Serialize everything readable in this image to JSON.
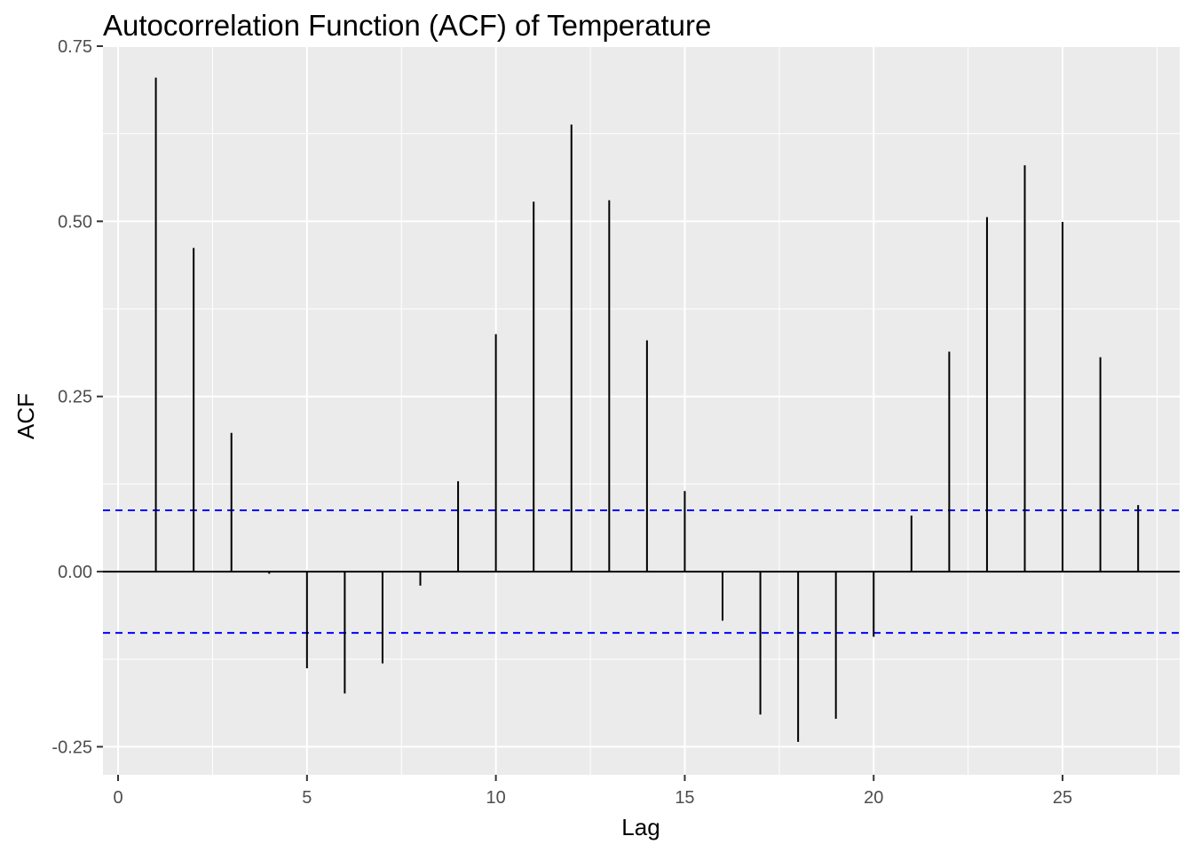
{
  "chart_data": {
    "type": "bar",
    "title": "Autocorrelation Function (ACF) of Temperature",
    "xlabel": "Lag",
    "ylabel": "ACF",
    "xlim": [
      -0.4,
      28.1
    ],
    "ylim": [
      -0.29,
      0.75
    ],
    "x_ticks": [
      0,
      5,
      10,
      15,
      20,
      25
    ],
    "x_tick_labels": [
      "0",
      "5",
      "10",
      "15",
      "20",
      "25"
    ],
    "y_ticks": [
      -0.25,
      0,
      0.25,
      0.5,
      0.75
    ],
    "y_tick_labels": [
      "-0.25",
      "0.00",
      "0.25",
      "0.50",
      "0.75"
    ],
    "grid": true,
    "background": "#ebebeb",
    "grid_color": "#ffffff",
    "bar_color": "#000000",
    "zero_line": 0,
    "confidence_bound": 0.0875,
    "confidence_line_color": "#0000ff",
    "lags": [
      1,
      2,
      3,
      4,
      5,
      6,
      7,
      8,
      9,
      10,
      11,
      12,
      13,
      14,
      15,
      16,
      17,
      18,
      19,
      20,
      21,
      22,
      23,
      24,
      25,
      26,
      27
    ],
    "values": [
      0.705,
      0.462,
      0.198,
      -0.003,
      -0.138,
      -0.174,
      -0.131,
      -0.02,
      0.129,
      0.339,
      0.528,
      0.638,
      0.53,
      0.33,
      0.115,
      -0.07,
      -0.204,
      -0.243,
      -0.21,
      -0.093,
      0.08,
      0.314,
      0.506,
      0.58,
      0.499,
      0.306,
      0.095
    ]
  }
}
